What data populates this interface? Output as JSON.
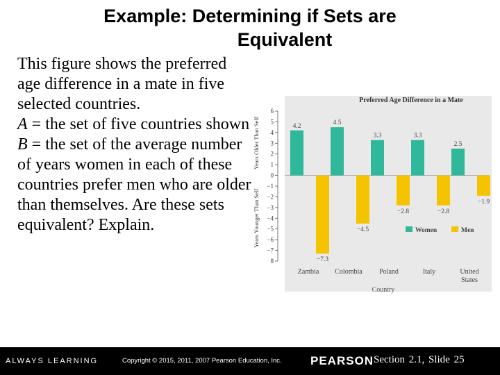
{
  "slide": {
    "title_line1": "Example: Determining if Sets are",
    "title_line2": "Equivalent",
    "para1": "This figure shows the preferred age difference in a mate in five selected countries.",
    "para2_var": "A",
    "para2_text": " = the set of five countries shown",
    "para3_var": "B",
    "para3_text": " = the set of the average number of years women in each of these countries prefer men who are older than themselves. Are these sets equivalent? Explain."
  },
  "footer": {
    "always_learning": "ALWAYS LEARNING",
    "copyright": "Copyright © 2015, 2011, 2007 Pearson Education, Inc.",
    "brand": "PEARSON",
    "slide_ref": "Section 2.1,  Slide 25"
  },
  "chart_data": {
    "type": "bar",
    "title": "Preferred Age Difference in a Mate",
    "xlabel": "Country",
    "ylabel_top": "Years Older Than Self",
    "ylabel_bottom": "Years Younger Than Self",
    "categories": [
      "Zambia",
      "Colombia",
      "Poland",
      "Italy",
      "United States"
    ],
    "series": [
      {
        "name": "Women",
        "color": "#2fb89a",
        "values": [
          4.2,
          4.5,
          3.3,
          3.3,
          2.5
        ],
        "labels": [
          "4.2",
          "4.5",
          "3.3",
          "3.3",
          "2.5"
        ]
      },
      {
        "name": "Men",
        "color": "#f5c400",
        "values": [
          -7.3,
          -4.5,
          -2.8,
          -2.8,
          -1.9
        ],
        "labels": [
          "−7.3",
          "−4.5",
          "−2.8",
          "−2.8",
          "−1.9"
        ]
      }
    ],
    "yticks": [
      "6",
      "5",
      "4",
      "3",
      "2",
      "1",
      "0",
      "−1",
      "−2",
      "−3",
      "−4",
      "−5",
      "−6",
      "−7",
      "8"
    ],
    "ylim": [
      -8,
      6
    ],
    "legend_position": "bottom-right",
    "background": "#e9e9e9"
  }
}
